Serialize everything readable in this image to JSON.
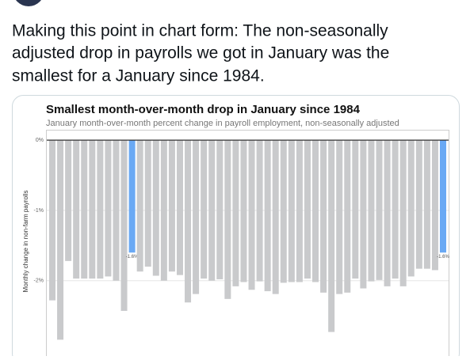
{
  "tweet": {
    "text_lines": [
      "Making this point in chart form: The non-seasonally",
      "adjusted drop in payrolls we got in January was the",
      "smallest for a January since 1984."
    ]
  },
  "chart_data": {
    "type": "bar",
    "title": "Smallest month-over-month drop in January since 1984",
    "subtitle": "January month-over-month percent change in payroll employment, non-seasonally adjusted",
    "y_label": "Monthly change in non-farm payrolls",
    "values": [
      -2.28,
      -2.84,
      -1.72,
      -1.97,
      -1.97,
      -1.97,
      -1.97,
      -1.94,
      -2.0,
      -2.43,
      -1.6,
      -1.87,
      -1.8,
      -1.93,
      -2.0,
      -1.87,
      -1.92,
      -2.31,
      -2.19,
      -1.97,
      -2.0,
      -1.98,
      -2.26,
      -2.08,
      -2.02,
      -2.13,
      -2.01,
      -2.15,
      -2.19,
      -2.03,
      -2.02,
      -2.02,
      -1.97,
      -2.02,
      -2.17,
      -2.73,
      -2.19,
      -2.17,
      -1.97,
      -2.11,
      -2.01,
      -1.99,
      -2.08,
      -1.97,
      -2.08,
      -1.94,
      -1.83,
      -1.83,
      -1.85,
      -1.6
    ],
    "value_labels": [
      null,
      null,
      null,
      null,
      null,
      null,
      null,
      null,
      null,
      null,
      "-1.6%",
      null,
      null,
      null,
      null,
      null,
      null,
      null,
      null,
      null,
      null,
      null,
      null,
      null,
      null,
      null,
      null,
      null,
      null,
      null,
      null,
      null,
      null,
      null,
      null,
      null,
      null,
      null,
      null,
      null,
      null,
      null,
      null,
      null,
      null,
      null,
      null,
      null,
      null,
      "-1.6%"
    ],
    "colors": [
      "#c9cacc",
      "#c9cacc",
      "#c9cacc",
      "#c9cacc",
      "#c9cacc",
      "#c9cacc",
      "#c9cacc",
      "#c9cacc",
      "#c9cacc",
      "#c9cacc",
      "#6aa9f4",
      "#c9cacc",
      "#c9cacc",
      "#c9cacc",
      "#c9cacc",
      "#c9cacc",
      "#c9cacc",
      "#c9cacc",
      "#c9cacc",
      "#c9cacc",
      "#c9cacc",
      "#c9cacc",
      "#c9cacc",
      "#c9cacc",
      "#c9cacc",
      "#c9cacc",
      "#c9cacc",
      "#c9cacc",
      "#c9cacc",
      "#c9cacc",
      "#c9cacc",
      "#c9cacc",
      "#c9cacc",
      "#c9cacc",
      "#c9cacc",
      "#c9cacc",
      "#c9cacc",
      "#c9cacc",
      "#c9cacc",
      "#c9cacc",
      "#c9cacc",
      "#c9cacc",
      "#c9cacc",
      "#c9cacc",
      "#c9cacc",
      "#c9cacc",
      "#c9cacc",
      "#c9cacc",
      "#c9cacc",
      "#6aa9f4"
    ],
    "ylim": [
      -3.05,
      0.08
    ],
    "yticks": [
      {
        "value": 0,
        "label": "0%"
      },
      {
        "value": -1,
        "label": "-1%"
      },
      {
        "value": -2,
        "label": "-2%"
      }
    ],
    "grid": true
  }
}
